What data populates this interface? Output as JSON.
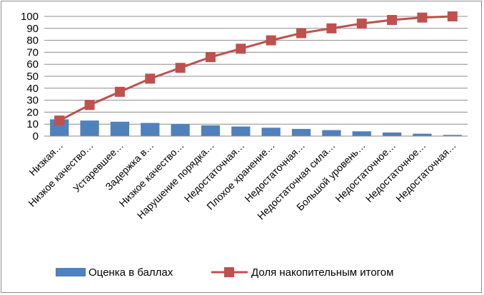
{
  "chart_data": {
    "type": "bar",
    "categories": [
      "Низкая…",
      "Низкое качество…",
      "Устаревшее…",
      "Задержка в…",
      "Низкое качество…",
      "Нарушение порядка…",
      "Недостаточная…",
      "Плохое хранение…",
      "Недостаточная…",
      "Недостаточная сила…",
      "Большой уровень…",
      "Недостаточное…",
      "Недостаточное…",
      "Недостаточная…"
    ],
    "series": [
      {
        "name": "Оценка в баллах",
        "type": "bar",
        "color": "#4f81bd",
        "values": [
          14,
          13,
          12,
          11,
          10,
          9,
          8,
          7,
          6,
          5,
          4,
          3,
          2,
          1
        ]
      },
      {
        "name": "Доля накопительным итогом",
        "type": "line",
        "marker": "square",
        "color": "#c0504d",
        "values": [
          13,
          26,
          37,
          48,
          57,
          66,
          73,
          80,
          86,
          90,
          94,
          97,
          99,
          100
        ]
      }
    ],
    "ylim": [
      0,
      100
    ],
    "yticks": [
      "0",
      "10",
      "20",
      "30",
      "40",
      "50",
      "60",
      "70",
      "80",
      "90",
      "100"
    ],
    "grid": true,
    "legend": "bottom"
  }
}
